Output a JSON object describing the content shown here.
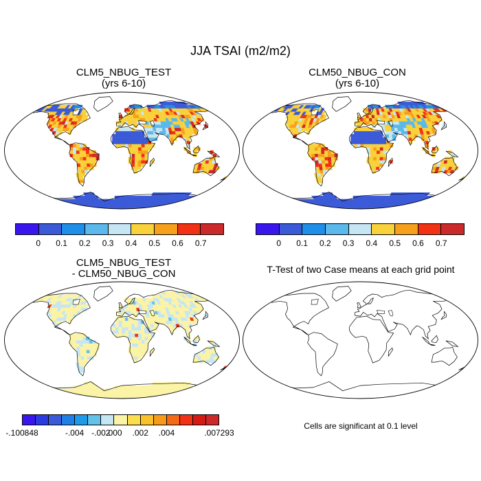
{
  "figure": {
    "title": "JJA TSAI (m2/m2)"
  },
  "panels": {
    "test": {
      "title_line1": "CLM5_NBUG_TEST",
      "title_line2": "(yrs 6-10)"
    },
    "control": {
      "title_line1": "CLM50_NBUG_CON",
      "title_line2": "(yrs 6-10)"
    },
    "difference": {
      "title_line1": "CLM5_NBUG_TEST",
      "title_line2": "- CLM50_NBUG_CON"
    },
    "ttest": {
      "title": "T-Test of two Case means at each grid point",
      "note": "Cells are significant at 0.1 level"
    }
  },
  "colorbars": {
    "main": {
      "colors": [
        "#3a16ee",
        "#3b5ad8",
        "#1f8ee8",
        "#5ab8ea",
        "#c6e6f4",
        "#f9d13a",
        "#f7a01c",
        "#f23214",
        "#cc2a2a"
      ],
      "labels": [
        "0",
        "0.1",
        "0.2",
        "0.3",
        "0.4",
        "0.5",
        "0.6",
        "0.7"
      ]
    },
    "diff": {
      "colors": [
        "#3a16ee",
        "#2b3be0",
        "#3b5ad8",
        "#1f7fe6",
        "#1f9ae8",
        "#63c1ea",
        "#c6e6f4",
        "#fbf3a6",
        "#fbdd4f",
        "#f9c22a",
        "#f79a1c",
        "#f56a16",
        "#f23214",
        "#d61a14",
        "#cc2a2a"
      ],
      "labels": [
        "-.100848",
        "-.004",
        "-.002",
        ".000",
        ".002",
        ".004",
        ".007293"
      ]
    }
  }
}
